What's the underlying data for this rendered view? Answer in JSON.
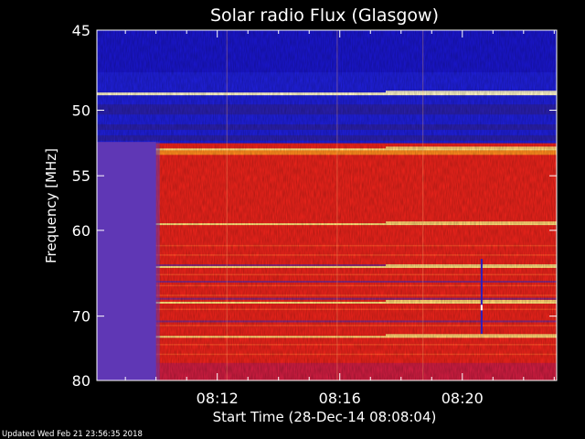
{
  "chart_data": {
    "type": "heatmap",
    "title": "Solar radio Flux (Glasgow)",
    "xlabel": "Start Time (28-Dec-14 08:08:04)",
    "ylabel": "Frequency [MHz]",
    "x_ticks": [
      "08:12",
      "08:16",
      "08:20"
    ],
    "x_tick_minutes": [
      12,
      16,
      20
    ],
    "x_range_minutes": [
      8.07,
      23.08
    ],
    "y_ticks": [
      45,
      50,
      55,
      60,
      70,
      80
    ],
    "ylim": [
      45,
      80
    ],
    "y_scale": "reciprocal",
    "bright_bands_mhz": [
      48.8,
      52.8,
      59.3,
      63.8,
      68.1,
      72.8
    ],
    "data_gap_until_minute": 10.0,
    "footer": "Updated Wed Feb 21 23:56:35 2018",
    "colors": {
      "low": "#1f1fd6",
      "mid": "#e8231b",
      "high": "#ffe27a",
      "gap": "#5f37b5"
    }
  }
}
